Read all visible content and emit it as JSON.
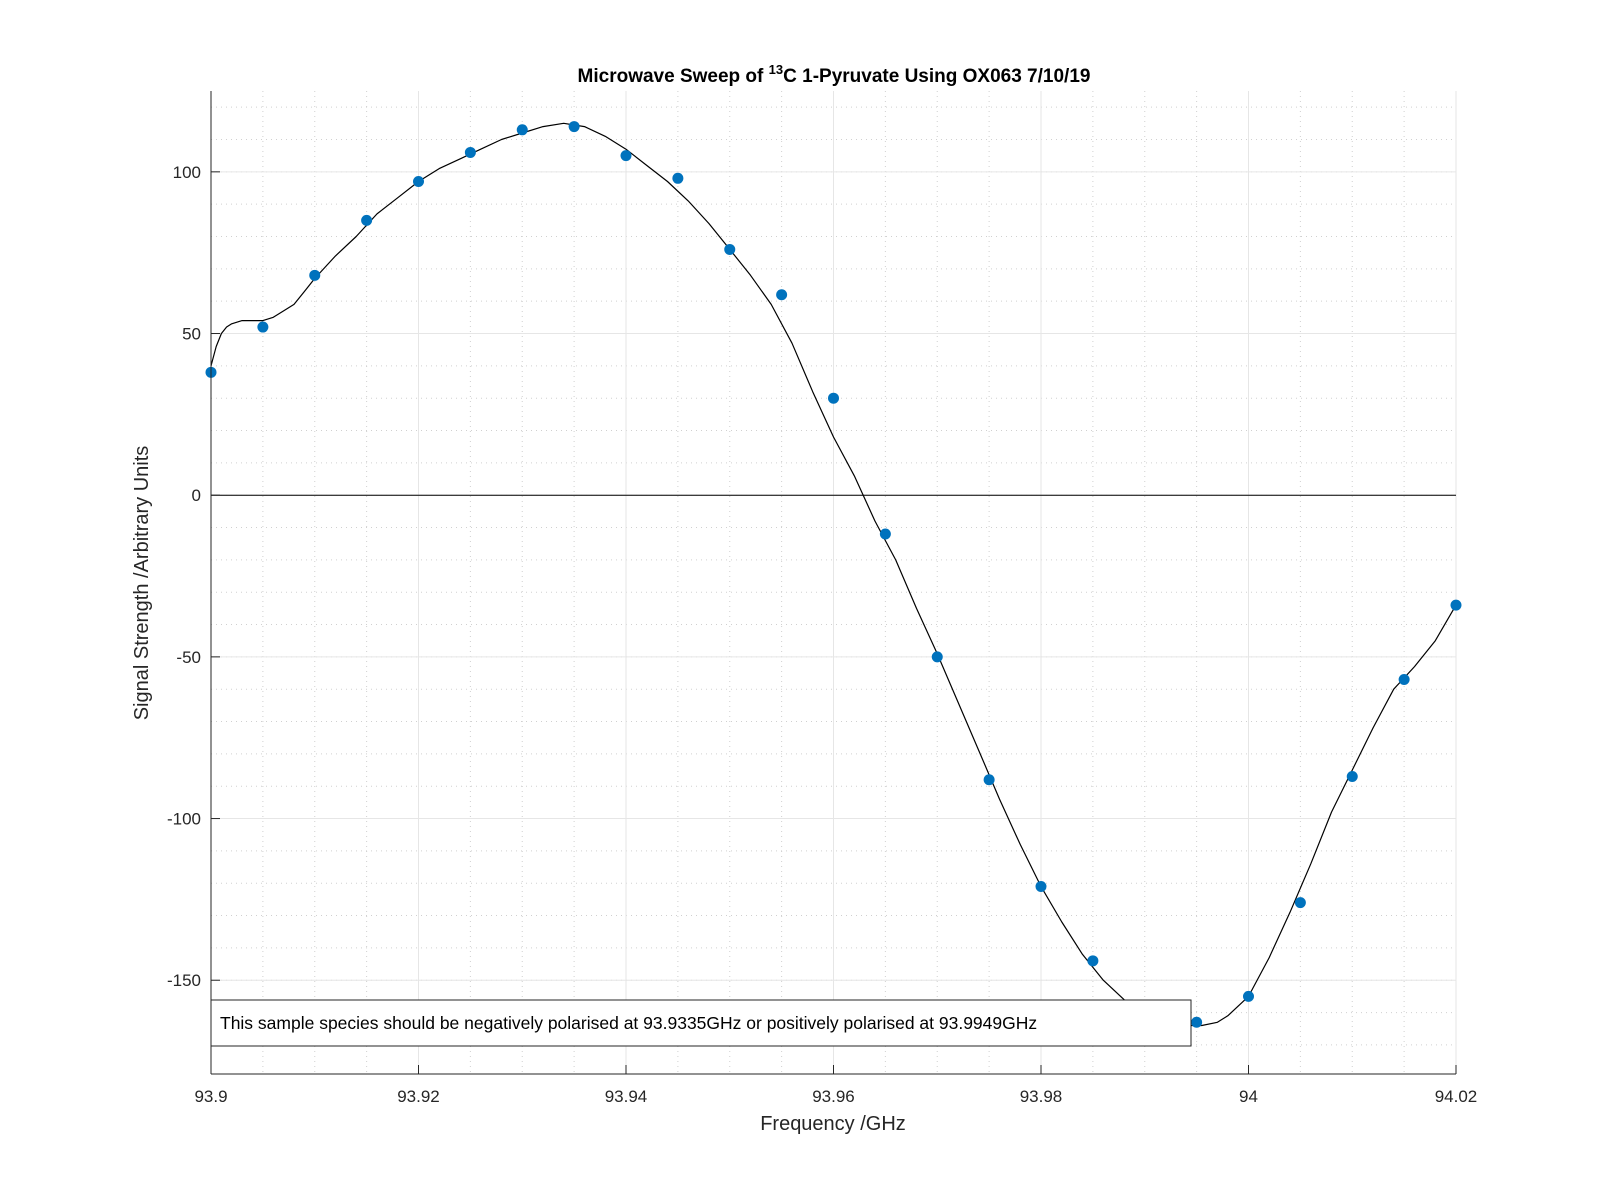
{
  "chart_data": {
    "type": "scatter",
    "title": {
      "prefix": "Microwave Sweep of ",
      "superscript": "13",
      "suffix": "C 1-Pyruvate Using OX063 7/10/19"
    },
    "xlabel": "Frequency /GHz",
    "ylabel": "Signal Strength /Arbitrary Units",
    "xlim": [
      93.9,
      94.02
    ],
    "ylim": [
      -179,
      125
    ],
    "x_ticks": [
      93.9,
      93.92,
      93.94,
      93.96,
      93.98,
      94,
      94.02
    ],
    "x_tick_labels": [
      "93.9",
      "93.92",
      "93.94",
      "93.96",
      "93.98",
      "94",
      "94.02"
    ],
    "y_ticks": [
      -150,
      -100,
      -50,
      0,
      50,
      100
    ],
    "y_tick_labels": [
      "-150",
      "-100",
      "-50",
      "0",
      "50",
      "100"
    ],
    "grid": true,
    "minor_grid": true,
    "zero_line": true,
    "colors": {
      "points": "#0072BD",
      "fit_line": "#000000",
      "grid": "#e6e6e6",
      "axis": "#262626"
    },
    "series": [
      {
        "kind": "points",
        "x": [
          93.9,
          93.905,
          93.91,
          93.915,
          93.92,
          93.925,
          93.93,
          93.935,
          93.94,
          93.945,
          93.95,
          93.955,
          93.96,
          93.965,
          93.97,
          93.975,
          93.98,
          93.985,
          93.99,
          93.995,
          94.0,
          94.005,
          94.01,
          94.015,
          94.02
        ],
        "y": [
          38,
          52,
          68,
          85,
          97,
          106,
          113,
          114,
          105,
          98,
          76,
          62,
          30,
          -12,
          -50,
          -88,
          -121,
          -144,
          -160,
          -163,
          -155,
          -126,
          -87,
          -57,
          -34
        ]
      },
      {
        "kind": "fit-line",
        "x": [
          93.9,
          93.9005,
          93.901,
          93.9015,
          93.902,
          93.903,
          93.904,
          93.905,
          93.906,
          93.907,
          93.908,
          93.909,
          93.91,
          93.912,
          93.914,
          93.916,
          93.918,
          93.92,
          93.922,
          93.924,
          93.926,
          93.928,
          93.93,
          93.932,
          93.934,
          93.936,
          93.938,
          93.94,
          93.942,
          93.944,
          93.946,
          93.948,
          93.95,
          93.952,
          93.954,
          93.956,
          93.958,
          93.96,
          93.962,
          93.964,
          93.966,
          93.968,
          93.97,
          93.972,
          93.974,
          93.976,
          93.978,
          93.98,
          93.982,
          93.984,
          93.986,
          93.988,
          93.99,
          93.992,
          93.994,
          93.9955,
          93.997,
          93.998,
          94.0,
          94.002,
          94.004,
          94.006,
          94.008,
          94.01,
          94.012,
          94.014,
          94.016,
          94.018,
          94.02
        ],
        "y": [
          40,
          46,
          50,
          52,
          53,
          54,
          54,
          54,
          55,
          57,
          59,
          63,
          67,
          74,
          80,
          87,
          92,
          97,
          101,
          104,
          107,
          110,
          112,
          114,
          115,
          114,
          111,
          107,
          102,
          97,
          91,
          84,
          76,
          68,
          59,
          47,
          32,
          18,
          6,
          -8,
          -20,
          -35,
          -49,
          -64,
          -79,
          -94,
          -108,
          -121,
          -132,
          -142,
          -150,
          -156,
          -160,
          -163,
          -164,
          -164,
          -163,
          -161,
          -155,
          -143,
          -129,
          -114,
          -98,
          -85,
          -72,
          -60,
          -53,
          -45,
          -34
        ]
      }
    ],
    "annotation": "This sample species should be negatively polarised at 93.9335GHz or positively polarised at 93.9949GHz"
  }
}
